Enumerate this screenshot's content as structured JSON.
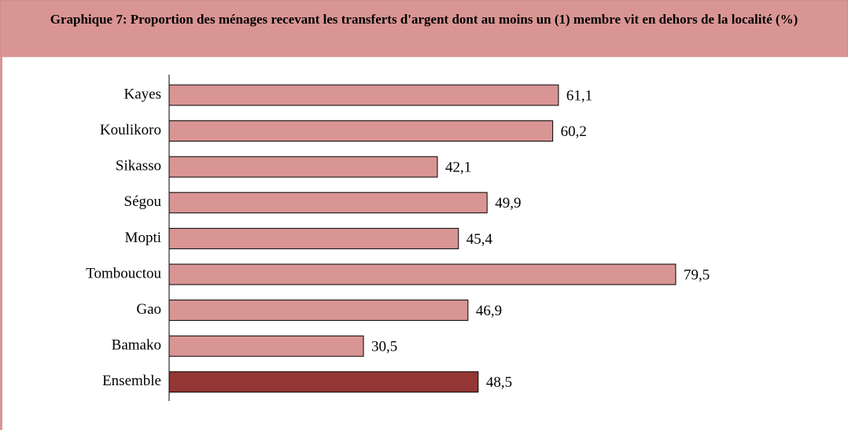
{
  "chart_data": {
    "type": "bar",
    "orientation": "horizontal",
    "title": "Graphique 7: Proportion des ménages recevant les transferts d'argent dont au moins un (1) membre vit en dehors de la localité (%)",
    "categories": [
      "Kayes",
      "Koulikoro",
      "Sikasso",
      "Ségou",
      "Mopti",
      "Tombouctou",
      "Gao",
      "Bamako",
      "Ensemble"
    ],
    "values": [
      61.1,
      60.2,
      42.1,
      49.9,
      45.4,
      79.5,
      46.9,
      30.5,
      48.5
    ],
    "value_labels": [
      "61,1",
      "60,2",
      "42,1",
      "49,9",
      "45,4",
      "79,5",
      "46,9",
      "30,5",
      "48,5"
    ],
    "colors": [
      "#d99594",
      "#d99594",
      "#d99594",
      "#d99594",
      "#d99594",
      "#d99594",
      "#d99594",
      "#d99594",
      "#943634"
    ]
  }
}
